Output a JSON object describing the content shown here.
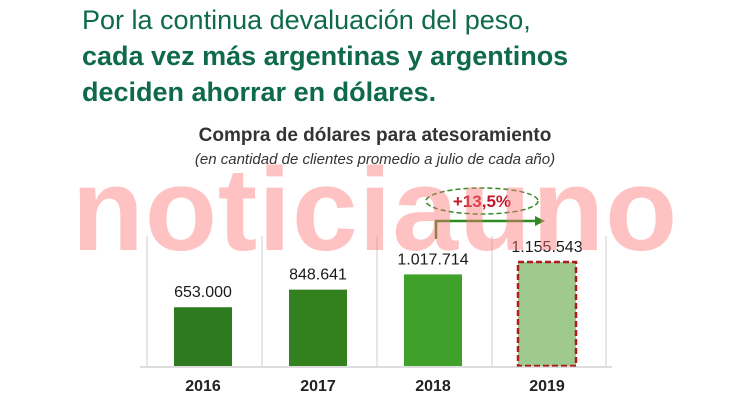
{
  "headline": {
    "line1": "Por la continua devaluación del peso,",
    "line2": "cada vez más argentinas y argentinos",
    "line3": "deciden ahorrar en dólares."
  },
  "watermark": "noticiauno",
  "chart_data": {
    "type": "bar",
    "title": "Compra de dólares para atesoramiento",
    "subtitle": "(en cantidad de clientes promedio a julio de cada año)",
    "categories": [
      "2016",
      "2017",
      "2018",
      "2019"
    ],
    "values": [
      653000,
      848641,
      1017714,
      1155543
    ],
    "value_labels": [
      "653.000",
      "848.641",
      "1.017.714",
      "1.155.543"
    ],
    "bar_colors": [
      "#2e7a1f",
      "#33801f",
      "#3fa12a",
      "#9ec98f"
    ],
    "highlight": {
      "category": "2019",
      "border_color": "#b01c1c"
    },
    "annotation": {
      "text": "+13,5%",
      "from": "2018",
      "to": "2019",
      "color": "#c0182b",
      "arrow_color": "#2e8b22"
    },
    "ylim": [
      0,
      1250000
    ],
    "grid": false
  }
}
